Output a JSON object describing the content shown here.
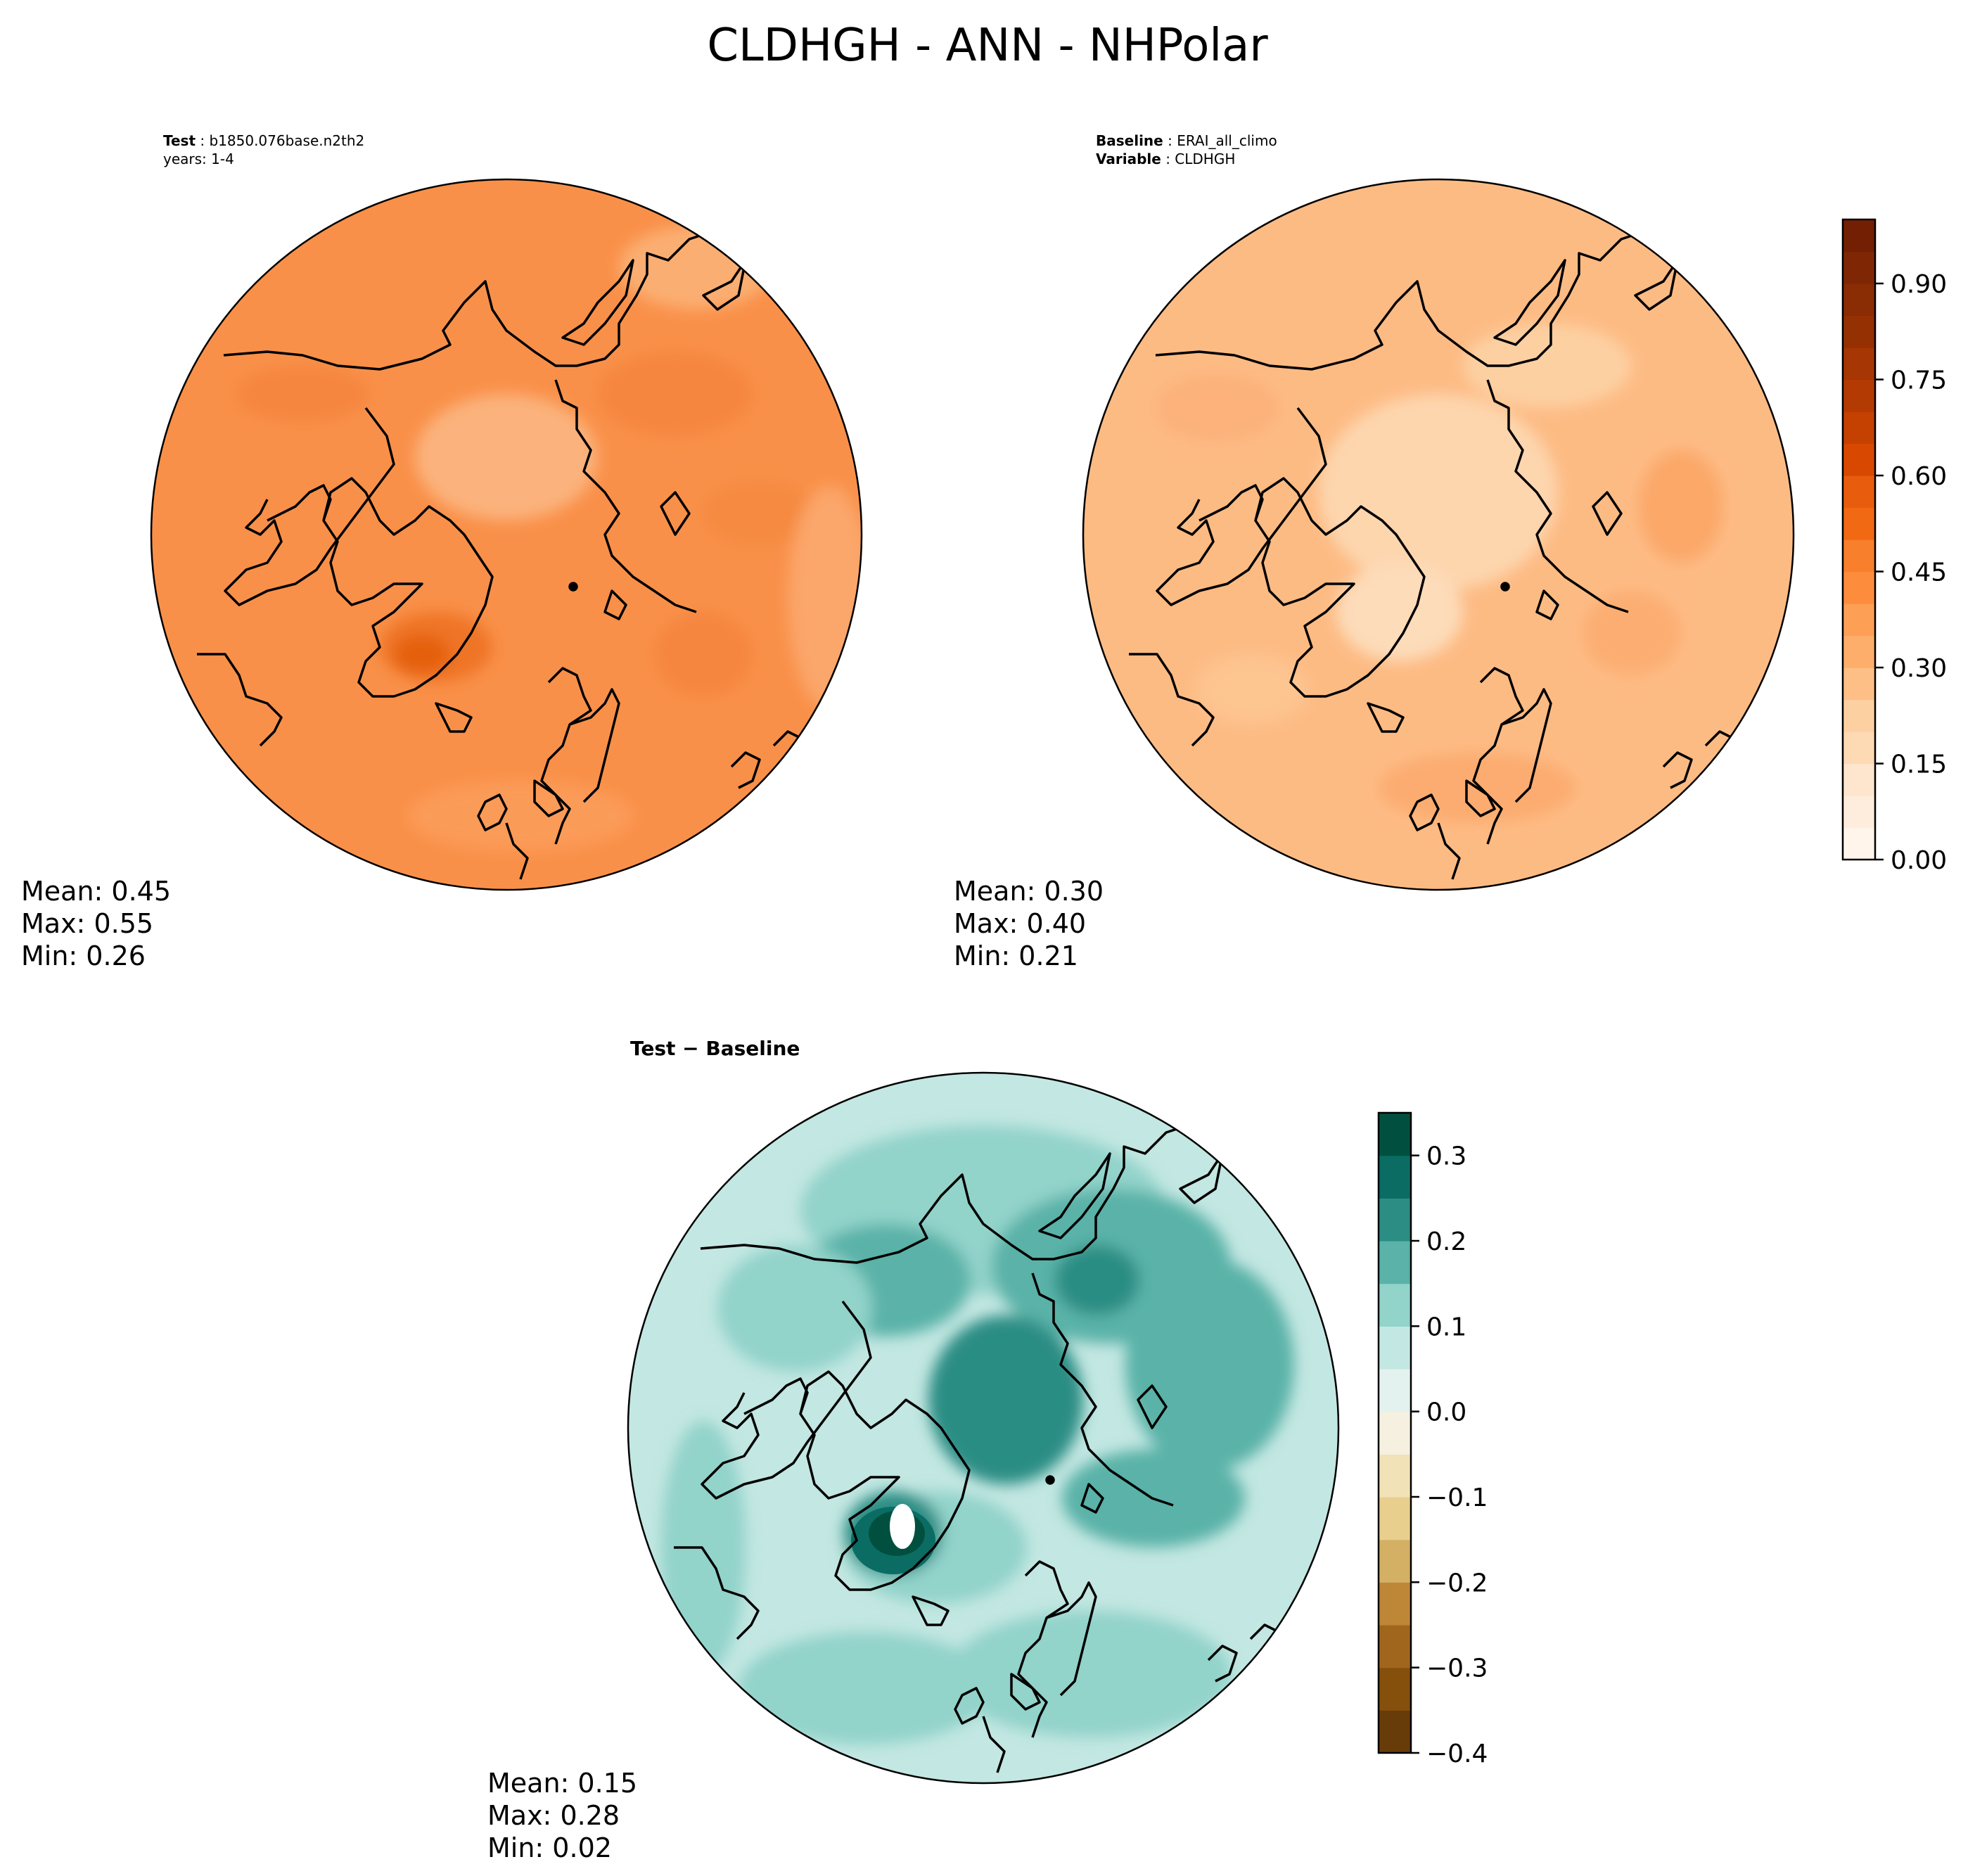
{
  "chart_data": {
    "type": "polar-contour-map",
    "title": "CLDHGH - ANN - NHPolar",
    "panels": [
      {
        "id": "test",
        "header": [
          {
            "label": "Test",
            "value": "b1850.076base.n2th2"
          },
          {
            "label": "",
            "value": "years: 1-4"
          }
        ],
        "stats": {
          "mean": "Mean:  0.45",
          "max": "Max:  0.55",
          "min": "Min:  0.26"
        },
        "field_summary": {
          "mean": 0.45,
          "max": 0.55,
          "min": 0.26
        },
        "colormap": "Oranges"
      },
      {
        "id": "baseline",
        "header": [
          {
            "label": "Baseline",
            "value": "ERAI_all_climo"
          },
          {
            "label": "Variable",
            "value": "CLDHGH"
          }
        ],
        "stats": {
          "mean": "Mean:  0.30",
          "max": "Max:  0.40",
          "min": "Min:  0.21"
        },
        "field_summary": {
          "mean": 0.3,
          "max": 0.4,
          "min": 0.21
        },
        "colormap": "Oranges"
      },
      {
        "id": "diff",
        "header": [
          {
            "label": "Test − Baseline",
            "value": ""
          }
        ],
        "stats": {
          "mean": "Mean:  0.15",
          "max": "Max:  0.28",
          "min": "Min:  0.02"
        },
        "field_summary": {
          "mean": 0.15,
          "max": 0.28,
          "min": 0.02
        },
        "colormap": "BrBG"
      }
    ],
    "colorbars": [
      {
        "for": "test-baseline",
        "range": [
          0.0,
          1.0
        ],
        "ticks": [
          0.0,
          0.15,
          0.3,
          0.45,
          0.6,
          0.75,
          0.9
        ],
        "tick_labels": [
          "0.00",
          "0.15",
          "0.30",
          "0.45",
          "0.60",
          "0.75",
          "0.90"
        ],
        "levels": [
          0,
          0.05,
          0.1,
          0.15,
          0.2,
          0.25,
          0.3,
          0.35,
          0.4,
          0.45,
          0.5,
          0.55,
          0.6,
          0.65,
          0.7,
          0.75,
          0.8,
          0.85,
          0.9,
          0.95,
          1.0
        ],
        "colors": [
          "#fff5eb",
          "#feeddc",
          "#fee6ce",
          "#fdd9b4",
          "#fdd0a2",
          "#fdbf86",
          "#fdae6b",
          "#fd9f55",
          "#fd8d3c",
          "#f87f2c",
          "#f16913",
          "#e85c0e",
          "#d94801",
          "#c54102",
          "#b33a03",
          "#a63603",
          "#953003",
          "#8a2c04",
          "#7f2704",
          "#731f04"
        ]
      },
      {
        "for": "diff",
        "range": [
          -0.4,
          0.35
        ],
        "ticks": [
          -0.4,
          -0.3,
          -0.2,
          -0.1,
          0.0,
          0.1,
          0.2,
          0.3
        ],
        "tick_labels": [
          "−0.4",
          "−0.3",
          "−0.2",
          "−0.1",
          "0.0",
          "0.1",
          "0.2",
          "0.3"
        ],
        "levels": [
          -0.4,
          -0.35,
          -0.3,
          -0.25,
          -0.2,
          -0.15,
          -0.1,
          -0.05,
          0.0,
          0.05,
          0.1,
          0.15,
          0.2,
          0.25,
          0.3,
          0.35
        ],
        "colors": [
          "#673c08",
          "#84500b",
          "#a1661d",
          "#be8637",
          "#d4b064",
          "#e8cf8e",
          "#f2e2b8",
          "#f5f0e0",
          "#e4f2ef",
          "#c3e7e2",
          "#92d3ca",
          "#5ab2a8",
          "#2b8d84",
          "#0b6c64",
          "#01503f"
        ]
      }
    ]
  }
}
